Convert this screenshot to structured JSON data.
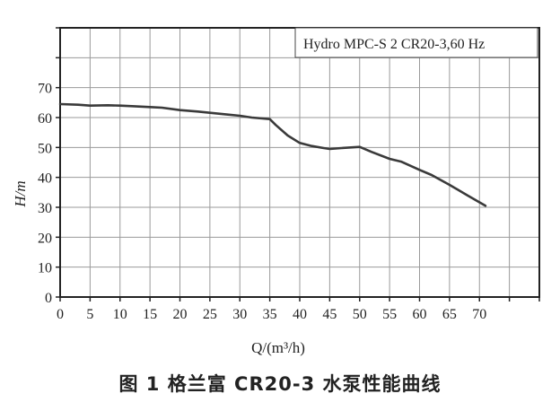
{
  "chart_data": {
    "type": "line",
    "legend_text": "Hydro MPC-S 2 CR20-3,60 Hz",
    "legend_position": "top-right",
    "ylabel": "H/m",
    "xlabel": "Q/(m³/h)",
    "xlim": [
      0,
      80
    ],
    "ylim": [
      0,
      90
    ],
    "x_ticks": [
      0,
      5,
      10,
      15,
      20,
      25,
      30,
      35,
      40,
      45,
      50,
      55,
      60,
      65,
      70
    ],
    "y_ticks": [
      0,
      10,
      20,
      30,
      40,
      50,
      60,
      70
    ],
    "grid": true,
    "series": [
      {
        "name": "Hydro MPC-S 2 CR20-3,60 Hz",
        "x": [
          0,
          3,
          5,
          8,
          10,
          12,
          15,
          17,
          20,
          23,
          25,
          28,
          30,
          32,
          35,
          36,
          38,
          40,
          42,
          44,
          45,
          47,
          50,
          52,
          55,
          57,
          60,
          62,
          65,
          68,
          71
        ],
        "y": [
          64.5,
          64.3,
          64,
          64.1,
          64,
          63.8,
          63.5,
          63.3,
          62.5,
          62,
          61.6,
          61,
          60.6,
          60,
          59.5,
          57.5,
          54,
          51.5,
          50.5,
          49.8,
          49.5,
          49.8,
          50.2,
          48.5,
          46.2,
          45.2,
          42.5,
          40.8,
          37.5,
          34,
          30.5
        ]
      }
    ]
  },
  "caption": "图 1  格兰富 CR20-3 水泵性能曲线"
}
